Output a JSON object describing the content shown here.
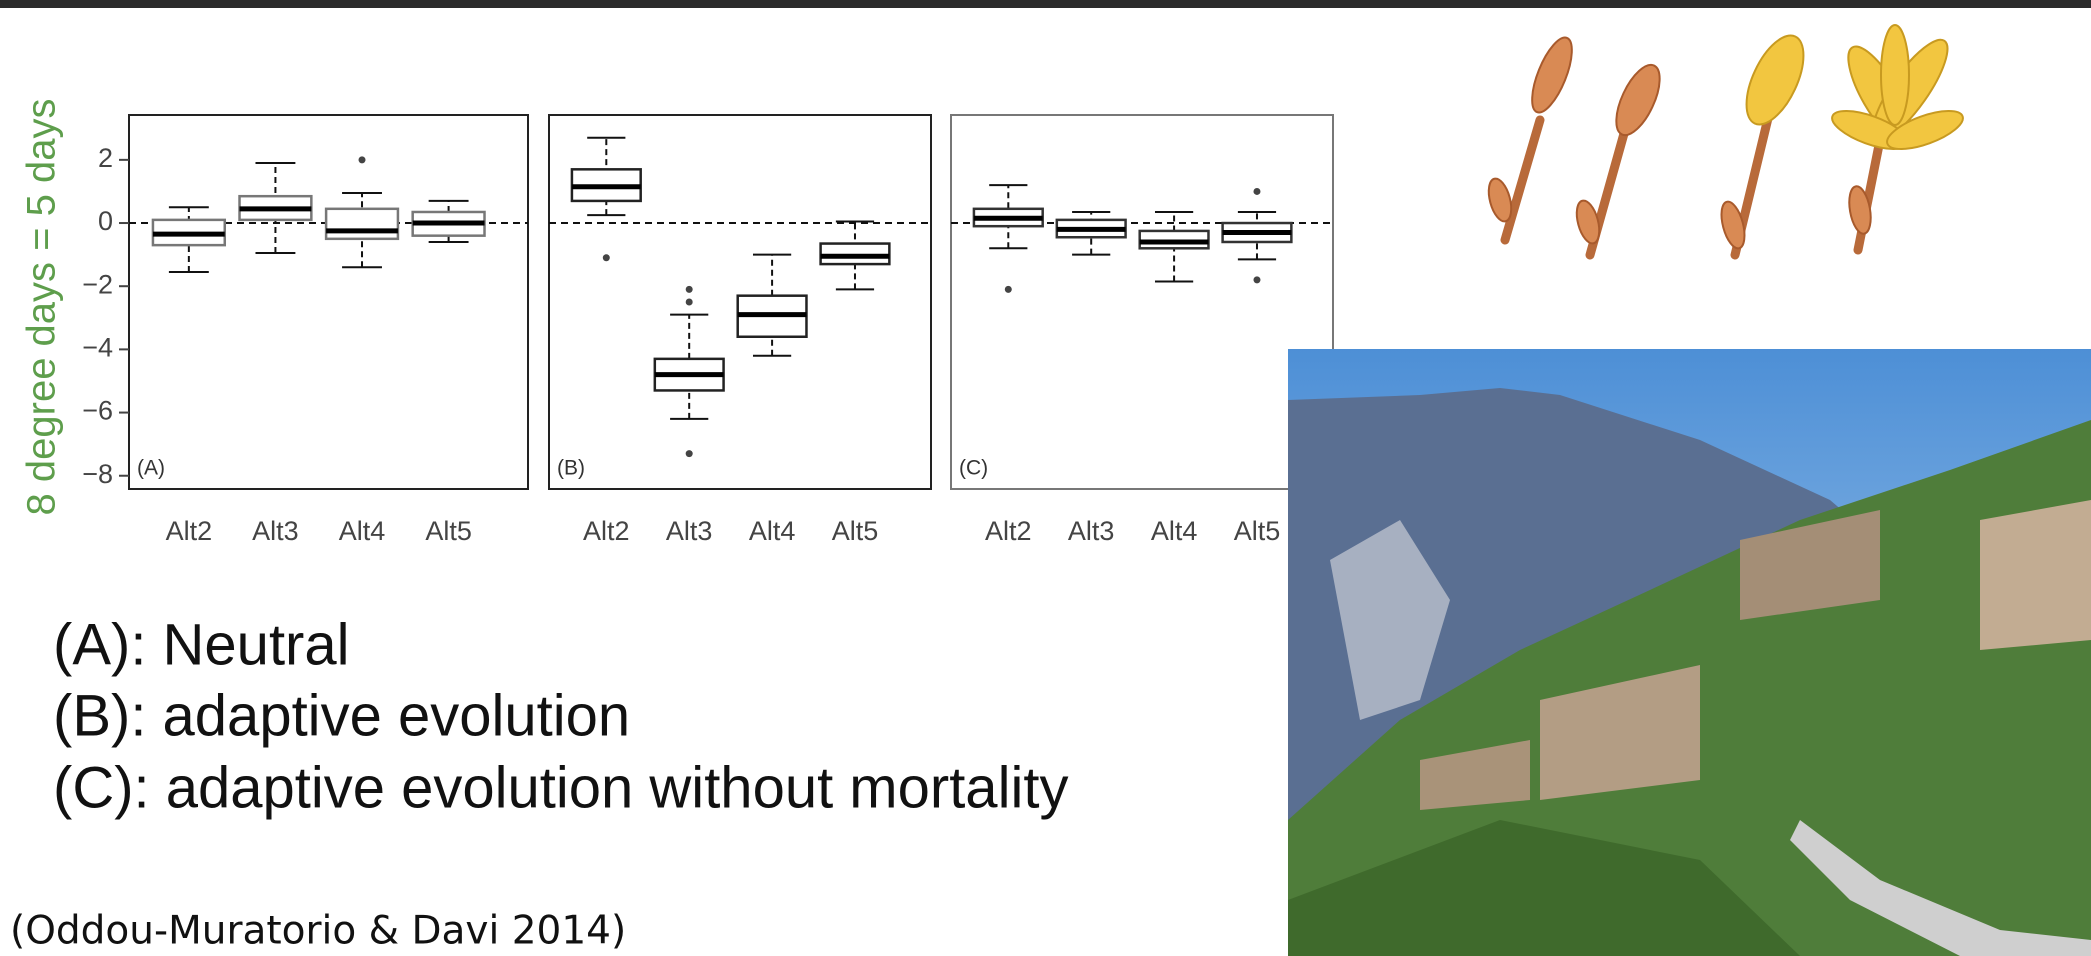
{
  "chart_data": [
    {
      "type": "box",
      "panel_label": "(A)",
      "y_label": "8 degree days = 5 days",
      "categories": [
        "Alt2",
        "Alt3",
        "Alt4",
        "Alt5"
      ],
      "ylim": [
        -8.42,
        3.42
      ],
      "yticks": [
        {
          "value": -8,
          "label": "−8"
        },
        {
          "value": -6,
          "label": "−6"
        },
        {
          "value": -4,
          "label": "−4"
        },
        {
          "value": -2,
          "label": "−2"
        },
        0,
        2
      ],
      "reference_line": 0,
      "box_color": "#777777",
      "boxes": [
        {
          "whisker_low": -1.55,
          "q1": -0.7,
          "median": -0.35,
          "q3": 0.1,
          "whisker_high": 0.5
        },
        {
          "whisker_low": -0.95,
          "q1": 0.1,
          "median": 0.45,
          "q3": 0.85,
          "whisker_high": 1.9
        },
        {
          "whisker_low": -1.4,
          "q1": -0.5,
          "median": -0.25,
          "q3": 0.45,
          "whisker_high": 0.95,
          "outliers": [
            2.0
          ]
        },
        {
          "whisker_low": -0.6,
          "q1": -0.4,
          "median": 0,
          "q3": 0.35,
          "whisker_high": 0.7
        }
      ]
    },
    {
      "type": "box",
      "panel_label": "(B)",
      "categories": [
        "Alt2",
        "Alt3",
        "Alt4",
        "Alt5"
      ],
      "ylim": [
        -8.42,
        3.42
      ],
      "reference_line": 0,
      "box_color": "#222222",
      "boxes": [
        {
          "whisker_low": 0.25,
          "q1": 0.7,
          "median": 1.15,
          "q3": 1.7,
          "whisker_high": 2.7,
          "outliers": [
            -1.1
          ]
        },
        {
          "whisker_low": -6.2,
          "q1": -5.3,
          "median": -4.8,
          "q3": -4.3,
          "whisker_high": -2.9,
          "outliers": [
            -2.1,
            -2.5,
            -7.3
          ]
        },
        {
          "whisker_low": -4.2,
          "q1": -3.6,
          "median": -2.9,
          "q3": -2.3,
          "whisker_high": -1.0
        },
        {
          "whisker_low": -2.1,
          "q1": -1.3,
          "median": -1.05,
          "q3": -0.65,
          "whisker_high": 0.05
        }
      ]
    },
    {
      "type": "box",
      "panel_label": "(C)",
      "categories": [
        "Alt2",
        "Alt3",
        "Alt4",
        "Alt5"
      ],
      "ylim": [
        -8.42,
        3.42
      ],
      "reference_line": 0,
      "box_color": "#333333",
      "boxes": [
        {
          "whisker_low": -0.8,
          "q1": -0.1,
          "median": 0.15,
          "q3": 0.45,
          "whisker_high": 1.2,
          "outliers": [
            -2.1
          ]
        },
        {
          "whisker_low": -1.0,
          "q1": -0.45,
          "median": -0.2,
          "q3": 0.1,
          "whisker_high": 0.35
        },
        {
          "whisker_low": -1.85,
          "q1": -0.8,
          "median": -0.6,
          "q3": -0.25,
          "whisker_high": 0.35
        },
        {
          "whisker_low": -1.15,
          "q1": -0.6,
          "median": -0.3,
          "q3": 0.0,
          "whisker_high": 0.35,
          "outliers": [
            1.0,
            -1.8
          ]
        }
      ]
    }
  ],
  "notes": [
    "(A): Neutral",
    "(B): adaptive evolution",
    "(C): adaptive evolution without mortality"
  ],
  "citation": "(Oddou-Muratorio & Davi 2014)"
}
